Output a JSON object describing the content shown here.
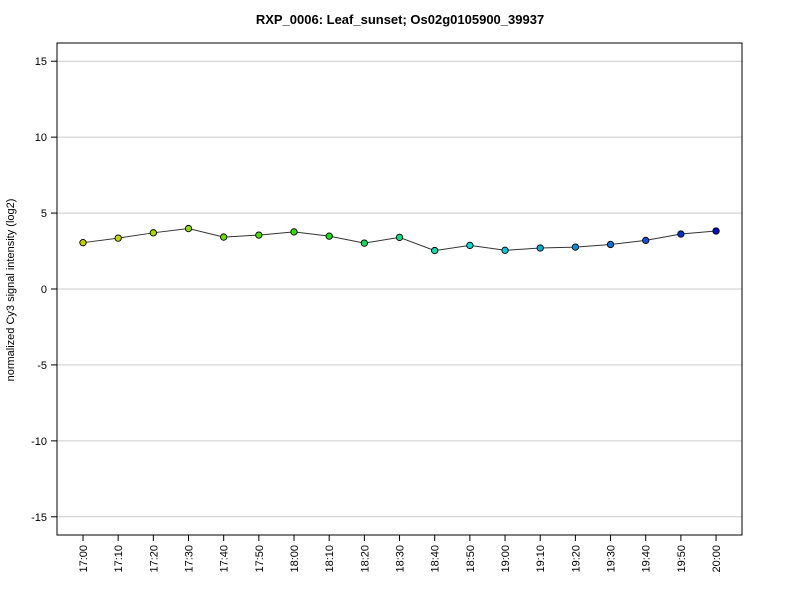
{
  "chart_data": {
    "type": "line",
    "title": "RXP_0006: Leaf_sunset; Os02g0105900_39937",
    "xlabel": "",
    "ylabel": "normalized Cy3 signal intensity (log2)",
    "ylim": [
      -16.2,
      16.2
    ],
    "yticks": [
      -15,
      -10,
      -5,
      0,
      5,
      10,
      15
    ],
    "grid": "horizontal",
    "categories": [
      "17:00",
      "17:10",
      "17:20",
      "17:30",
      "17:40",
      "17:50",
      "18:00",
      "18:10",
      "18:20",
      "18:30",
      "18:40",
      "18:50",
      "19:00",
      "19:10",
      "19:20",
      "19:30",
      "19:40",
      "19:50",
      "20:00"
    ],
    "values": [
      3.05,
      3.35,
      3.7,
      3.98,
      3.42,
      3.55,
      3.76,
      3.48,
      3.02,
      3.4,
      2.53,
      2.87,
      2.55,
      2.7,
      2.76,
      2.93,
      3.2,
      3.62,
      3.82
    ],
    "point_colors": [
      "#cccc00",
      "#c0d600",
      "#a9da00",
      "#8ddc00",
      "#6edc00",
      "#4fdc00",
      "#2fdc00",
      "#18dc20",
      "#10dc55",
      "#10dc88",
      "#10dcb0",
      "#10d6d0",
      "#10c0dc",
      "#10a8dc",
      "#108cdc",
      "#1070d8",
      "#1050d0",
      "#0a30c8",
      "#0010c0"
    ],
    "line_color": "#333333"
  }
}
